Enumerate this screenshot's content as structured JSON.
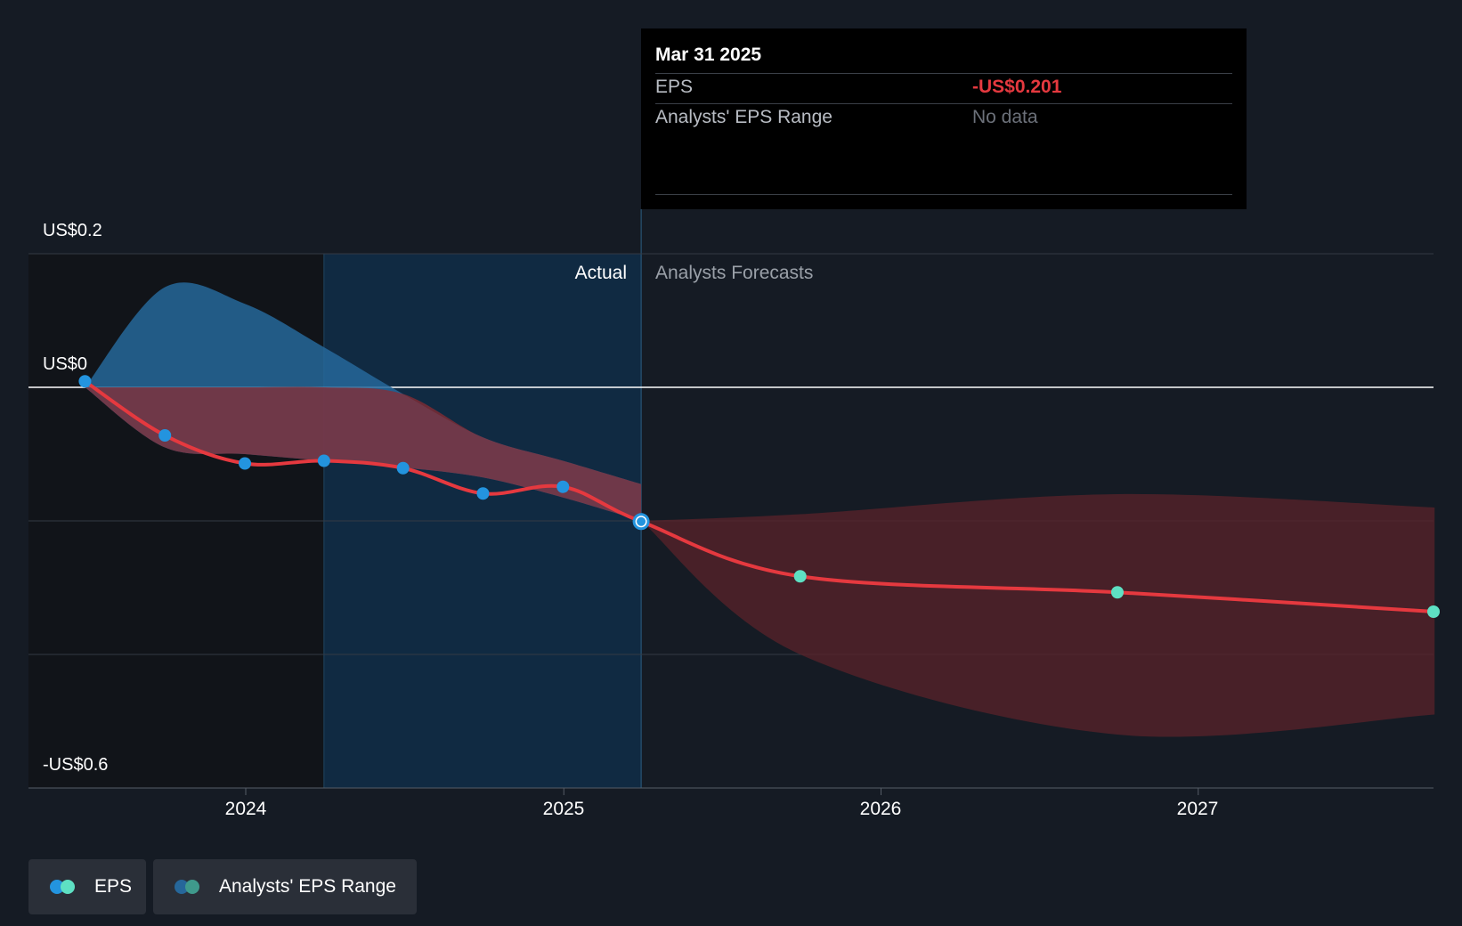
{
  "colors": {
    "background": "#151b24",
    "eps_line": "#e5393f",
    "actual_point": "#2394df",
    "forecast_point": "#5ee0c3",
    "range_actual_fill": "#26679a",
    "range_forecast_fill": "#5a2329",
    "actual_band": "#102a42",
    "tooltip_eps_value": "#e5393f",
    "muted_text": "#7b8089"
  },
  "y_axis": {
    "top_label": "US$0.2",
    "zero_label": "US$0",
    "bottom_label": "-US$0.6"
  },
  "x_axis": {
    "ticks": [
      "2024",
      "2025",
      "2026",
      "2027"
    ]
  },
  "regions": {
    "actual_label": "Actual",
    "forecast_label": "Analysts Forecasts"
  },
  "tooltip": {
    "date": "Mar 31 2025",
    "rows": [
      {
        "key": "EPS",
        "value": "-US$0.201"
      },
      {
        "key": "Analysts' EPS Range",
        "value": "No data"
      }
    ]
  },
  "legend": [
    {
      "label": "EPS",
      "icon": "eps-legend-icon"
    },
    {
      "label": "Analysts' EPS Range",
      "icon": "range-legend-icon"
    }
  ],
  "chart_data": {
    "type": "line",
    "title": "",
    "xlabel": "",
    "ylabel": "",
    "ylim": [
      -0.6,
      0.2
    ],
    "x_ticks": [
      "2024",
      "2025",
      "2026",
      "2027"
    ],
    "grid": true,
    "legend_position": "bottom-left",
    "highlight_date": "2025-03-31",
    "series": [
      {
        "name": "EPS",
        "kind": "actual",
        "points": [
          {
            "x": "2023-06-30",
            "y": 0.009
          },
          {
            "x": "2023-09-30",
            "y": -0.072
          },
          {
            "x": "2023-12-31",
            "y": -0.114
          },
          {
            "x": "2024-03-31",
            "y": -0.11
          },
          {
            "x": "2024-06-30",
            "y": -0.121
          },
          {
            "x": "2024-09-30",
            "y": -0.159
          },
          {
            "x": "2024-12-31",
            "y": -0.149
          },
          {
            "x": "2025-03-31",
            "y": -0.201
          }
        ]
      },
      {
        "name": "EPS",
        "kind": "forecast",
        "points": [
          {
            "x": "2025-03-31",
            "y": -0.201
          },
          {
            "x": "2025-09-30",
            "y": -0.283
          },
          {
            "x": "2026-09-30",
            "y": -0.307
          },
          {
            "x": "2027-09-30",
            "y": -0.336
          }
        ]
      },
      {
        "name": "Analysts' EPS Range",
        "kind": "range",
        "points": [
          {
            "x": "2023-06-30",
            "high": 0.0,
            "low": 0.0
          },
          {
            "x": "2023-09-30",
            "high": 0.15,
            "low": -0.09
          },
          {
            "x": "2023-12-31",
            "high": 0.125,
            "low": -0.1
          },
          {
            "x": "2024-03-31",
            "high": 0.06,
            "low": -0.11
          },
          {
            "x": "2024-06-30",
            "high": -0.01,
            "low": -0.12
          },
          {
            "x": "2024-09-30",
            "high": -0.075,
            "low": -0.135
          },
          {
            "x": "2024-12-31",
            "high": -0.11,
            "low": -0.165
          },
          {
            "x": "2025-03-31",
            "high": -0.145,
            "low": -0.2
          }
        ]
      },
      {
        "name": "Analysts' EPS Range",
        "kind": "range-forecast",
        "points": [
          {
            "x": "2025-03-31",
            "high": -0.2,
            "low": -0.2
          },
          {
            "x": "2025-09-30",
            "high": -0.19,
            "low": -0.4
          },
          {
            "x": "2026-09-30",
            "high": -0.16,
            "low": -0.52
          },
          {
            "x": "2027-09-30",
            "high": -0.18,
            "low": -0.49
          }
        ]
      }
    ]
  }
}
